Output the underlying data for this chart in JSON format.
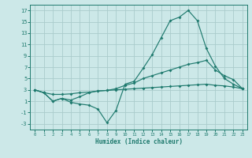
{
  "xlabel": "Humidex (Indice chaleur)",
  "background_color": "#cce8e8",
  "grid_color": "#aacccc",
  "line_color": "#1f7a6e",
  "xlim": [
    -0.5,
    23.5
  ],
  "ylim": [
    -4,
    18
  ],
  "yticks": [
    -3,
    -1,
    1,
    3,
    5,
    7,
    9,
    11,
    13,
    15,
    17
  ],
  "xticks": [
    0,
    1,
    2,
    3,
    4,
    5,
    6,
    7,
    8,
    9,
    10,
    11,
    12,
    13,
    14,
    15,
    16,
    17,
    18,
    19,
    20,
    21,
    22,
    23
  ],
  "line1_x": [
    0,
    1,
    2,
    3,
    4,
    5,
    6,
    7,
    8,
    9,
    10,
    11,
    12,
    13,
    14,
    15,
    16,
    17,
    18,
    19,
    20,
    21,
    22,
    23
  ],
  "line1_y": [
    3.0,
    2.5,
    1.0,
    1.5,
    0.8,
    0.5,
    0.3,
    -0.4,
    -2.8,
    -0.6,
    4.0,
    4.5,
    6.8,
    9.2,
    12.2,
    15.2,
    15.8,
    17.0,
    15.2,
    10.3,
    7.2,
    5.0,
    4.0,
    3.2
  ],
  "line2_x": [
    0,
    1,
    2,
    3,
    4,
    5,
    6,
    7,
    8,
    9,
    10,
    11,
    12,
    13,
    14,
    15,
    16,
    17,
    18,
    19,
    20,
    21,
    22,
    23
  ],
  "line2_y": [
    3.0,
    2.5,
    1.0,
    1.5,
    1.2,
    1.8,
    2.5,
    2.8,
    2.9,
    3.2,
    3.8,
    4.2,
    5.0,
    5.5,
    6.0,
    6.5,
    7.0,
    7.5,
    7.8,
    8.2,
    6.5,
    5.5,
    4.8,
    3.2
  ],
  "line3_x": [
    0,
    1,
    2,
    3,
    4,
    5,
    6,
    7,
    8,
    9,
    10,
    11,
    12,
    13,
    14,
    15,
    16,
    17,
    18,
    19,
    20,
    21,
    22,
    23
  ],
  "line3_y": [
    3.0,
    2.5,
    2.2,
    2.2,
    2.3,
    2.5,
    2.6,
    2.8,
    2.9,
    3.0,
    3.1,
    3.2,
    3.3,
    3.4,
    3.5,
    3.6,
    3.7,
    3.8,
    3.9,
    4.0,
    3.8,
    3.7,
    3.5,
    3.2
  ]
}
